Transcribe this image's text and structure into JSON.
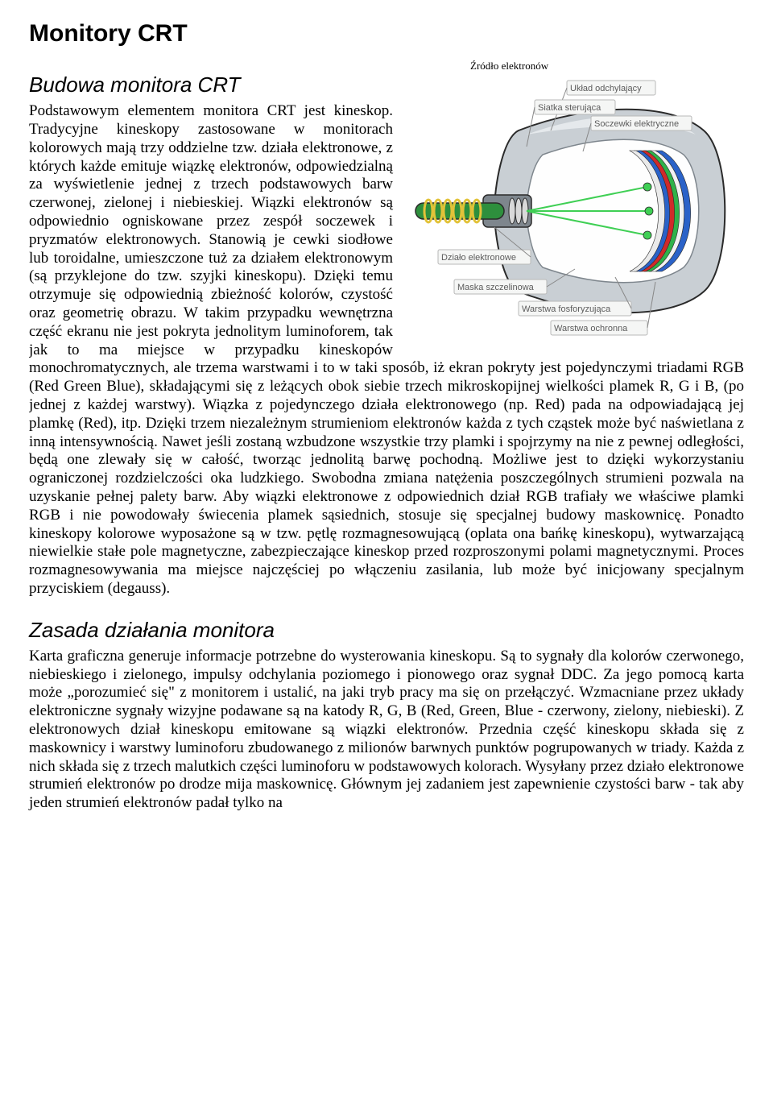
{
  "title": "Monitory CRT",
  "section1": {
    "heading": "Budowa monitora CRT",
    "figure_caption": "Źródło elektronów",
    "body": "Podstawowym elementem monitora CRT jest kineskop. Tradycyjne kineskopy zastosowane w monitorach kolorowych mają trzy oddzielne tzw. działa elektronowe, z których każde emituje wiązkę elektronów, odpowiedzialną za wyświetlenie jednej z trzech podstawowych barw czerwonej, zielonej i niebieskiej. Wiązki elektronów są odpowiednio ogniskowane przez zespół soczewek i pryzmatów elektronowych. Stanowią je cewki siodłowe lub toroidalne, umieszczone tuż za działem elektronowym (są przyklejone do tzw. szyjki kineskopu). Dzięki temu otrzymuje się odpowiednią zbieżność kolorów, czystość oraz geometrię obrazu. W takim przypadku wewnętrzna część ekranu nie jest pokryta jednolitym luminoforem, tak jak to ma miejsce w przypadku kineskopów monochromatycznych, ale trzema warstwami i to w taki sposób, iż ekran pokryty jest pojedynczymi triadami RGB (Red Green Blue), składającymi się z leżących obok siebie trzech mikroskopijnej wielkości plamek R, G i B, (po jednej z każdej warstwy). Wiązka z pojedynczego działa elektronowego (np. Red) pada na odpowiadającą jej plamkę (Red), itp. Dzięki trzem niezależnym strumieniom elektronów każda z tych cząstek może być naświetlana z inną intensywnością. Nawet jeśli zostaną wzbudzone wszystkie trzy plamki i spojrzymy na nie z pewnej odległości, będą one zlewały się w całość, tworząc jednolitą barwę pochodną. Możliwe jest to dzięki wykorzystaniu ograniczonej rozdzielczości oka ludzkiego. Swobodna zmiana natężenia poszczególnych strumieni pozwala na uzyskanie pełnej palety barw. Aby wiązki elektronowe z odpowiednich dział RGB trafiały we właściwe plamki RGB i nie powodowały świecenia plamek sąsiednich, stosuje się specjalnej budowy maskownicę. Ponadto kineskopy kolorowe wyposażone są w tzw. pętlę rozmagnesowującą (oplata ona bańkę kineskopu), wytwarzającą niewielkie stałe pole magnetyczne, zabezpieczające kineskop przed rozproszonymi polami magnetycznymi. Proces rozmagnesowywania ma miejsce najczęściej po włączeniu zasilania, lub może być inicjowany specjalnym przyciskiem (degauss)."
  },
  "section2": {
    "heading": "Zasada działania monitora",
    "body": "Karta graficzna generuje informacje potrzebne do wysterowania kineskopu. Są to sygnały dla kolorów czerwonego, niebieskiego i zielonego, impulsy odchylania poziomego i pionowego oraz sygnał DDC. Za jego pomocą karta może „porozumieć się\" z monitorem i ustalić, na jaki tryb pracy ma się on przełączyć. Wzmacniane przez układy elektroniczne sygnały wizyjne podawane są na katody R, G, B (Red, Green, Blue - czerwony, zielony, niebieski). Z elektronowych dział kineskopu emitowane są wiązki elektronów. Przednia część kineskopu składa się z maskownicy i warstwy luminoforu zbudowanego z milionów barwnych punktów pogrupowanych w triady. Każda z nich składa się z trzech malutkich części luminoforu w podstawowych kolorach. Wysyłany przez działo elektronowe strumień elektronów po drodze mija maskownicę. Głównym jej zadaniem jest zapewnienie czystości barw - tak aby jeden strumień elektronów padał tylko na"
  },
  "figure": {
    "labels": {
      "uklad": "Układ odchylający",
      "siatka": "Siatka sterująca",
      "soczewki": "Soczewki elektryczne",
      "dzialo": "Działo elektronowe",
      "maska": "Maska szczelinowa",
      "warstwa_f": "Warstwa fosforyzująca",
      "warstwa_o": "Warstwa ochronna"
    },
    "colors": {
      "shell": "#c9cfd4",
      "shell_dark": "#7e868d",
      "inner_white": "#fefefe",
      "screen_blue": "#2a62c8",
      "screen_green": "#2fb24a",
      "screen_red": "#d02a2a",
      "neck_green": "#2e8f3d",
      "coil_yellow": "#e2c239",
      "beam_green": "#3fcf54",
      "label_box_bg": "#f5f6f5",
      "label_box_border": "#b8b8b8",
      "label_text": "#5c5c5c",
      "outline": "#2a2a2a"
    }
  }
}
